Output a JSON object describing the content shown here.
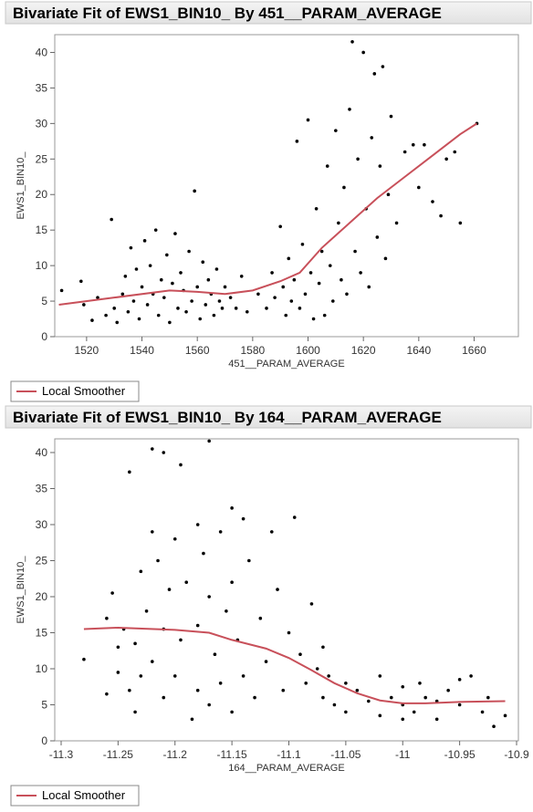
{
  "chart_data": [
    {
      "type": "scatter",
      "title": "Bivariate Fit of EWS1_BIN10_  By 451__PARAM_AVERAGE",
      "x_label": "451__PARAM_AVERAGE",
      "y_label": "EWS1_BIN10_",
      "xlim": [
        1508.5,
        1676
      ],
      "ylim": [
        0,
        42.5
      ],
      "xticks": [
        1520,
        1540,
        1560,
        1580,
        1600,
        1620,
        1640,
        1660
      ],
      "yticks": [
        0,
        5,
        10,
        15,
        20,
        25,
        30,
        35,
        40
      ],
      "series": [
        {
          "color": "#000000",
          "x": [
            1511,
            1518,
            1519,
            1522,
            1524,
            1527,
            1529,
            1530,
            1531,
            1533,
            1534,
            1535,
            1536,
            1537,
            1538,
            1539,
            1540,
            1541,
            1542,
            1543,
            1544,
            1545,
            1546,
            1547,
            1548,
            1549,
            1550,
            1551,
            1552,
            1553,
            1554,
            1555,
            1556,
            1557,
            1558,
            1559,
            1560,
            1561,
            1562,
            1563,
            1564,
            1565,
            1566,
            1567,
            1568,
            1569,
            1570,
            1572,
            1574,
            1576,
            1578,
            1582,
            1585,
            1587,
            1588,
            1590,
            1591,
            1592,
            1593,
            1594,
            1595,
            1596,
            1597,
            1598,
            1599,
            1600,
            1601,
            1602,
            1603,
            1604,
            1605,
            1606,
            1607,
            1608,
            1609,
            1610,
            1611,
            1612,
            1613,
            1614,
            1615,
            1616,
            1617,
            1618,
            1619,
            1620,
            1621,
            1622,
            1623,
            1624,
            1625,
            1626,
            1627,
            1628,
            1629,
            1630,
            1632,
            1635,
            1638,
            1640,
            1642,
            1645,
            1648,
            1650,
            1653,
            1655,
            1661
          ],
          "y": [
            6.5,
            7.8,
            4.5,
            2.3,
            5.5,
            3,
            16.5,
            4,
            2,
            6,
            8.5,
            3.5,
            12.5,
            5,
            9.5,
            2.5,
            7,
            13.5,
            4.5,
            10,
            6,
            15,
            3,
            8,
            5.5,
            11.5,
            2,
            7.5,
            14.5,
            4,
            9,
            6.5,
            3.5,
            12,
            5,
            20.5,
            7,
            2.5,
            10.5,
            4.5,
            8,
            6,
            3,
            9.5,
            5,
            4,
            7,
            5.5,
            4,
            8.5,
            3.5,
            6,
            4,
            9,
            5.5,
            15.5,
            7,
            3,
            11,
            5,
            8,
            27.5,
            4,
            13,
            6,
            30.5,
            9,
            2.5,
            18,
            7.5,
            12,
            3,
            24,
            10,
            5,
            29,
            16,
            8,
            21,
            6,
            32,
            41.5,
            12,
            25,
            9,
            40,
            18,
            7,
            28,
            37,
            14,
            24,
            38,
            11,
            20,
            31,
            16,
            26,
            27,
            21,
            27,
            19,
            17,
            25,
            26,
            16,
            30
          ]
        },
        {
          "name": "Local Smoother",
          "color": "#c8505a",
          "mode": "line",
          "x": [
            1510,
            1530,
            1550,
            1560,
            1570,
            1580,
            1590,
            1597,
            1605,
            1615,
            1625,
            1635,
            1645,
            1655,
            1661
          ],
          "y": [
            4.5,
            5.5,
            6.5,
            6.3,
            6,
            6.5,
            7.8,
            9,
            12.5,
            16,
            19.5,
            22.5,
            25.5,
            28.5,
            30
          ]
        }
      ]
    },
    {
      "type": "scatter",
      "title": "Bivariate Fit of EWS1_BIN10_  By 164__PARAM_AVERAGE",
      "x_label": "164__PARAM_AVERAGE",
      "y_label": "EWS1_BIN10_",
      "xlim": [
        -11.3056,
        -10.8984
      ],
      "ylim": [
        0,
        41.9
      ],
      "xticks": [
        -11.3,
        -11.25,
        -11.2,
        -11.15,
        -11.1,
        -11.05,
        -11,
        -10.95,
        -10.9
      ],
      "yticks": [
        0,
        5,
        10,
        15,
        20,
        25,
        30,
        35,
        40
      ],
      "series": [
        {
          "color": "#000000",
          "x": [
            -11.28,
            -11.26,
            -11.26,
            -11.255,
            -11.25,
            -11.25,
            -11.245,
            -11.24,
            -11.24,
            -11.235,
            -11.235,
            -11.23,
            -11.23,
            -11.225,
            -11.22,
            -11.22,
            -11.22,
            -11.215,
            -11.21,
            -11.21,
            -11.21,
            -11.205,
            -11.2,
            -11.2,
            -11.195,
            -11.195,
            -11.19,
            -11.185,
            -11.18,
            -11.18,
            -11.18,
            -11.175,
            -11.17,
            -11.17,
            -11.17,
            -11.165,
            -11.16,
            -11.16,
            -11.155,
            -11.15,
            -11.15,
            -11.15,
            -11.145,
            -11.14,
            -11.14,
            -11.135,
            -11.13,
            -11.125,
            -11.12,
            -11.115,
            -11.11,
            -11.105,
            -11.1,
            -11.095,
            -11.09,
            -11.085,
            -11.08,
            -11.075,
            -11.07,
            -11.07,
            -11.065,
            -11.06,
            -11.05,
            -11.05,
            -11.04,
            -11.03,
            -11.02,
            -11.02,
            -11.01,
            -11,
            -11,
            -11,
            -10.99,
            -10.985,
            -10.98,
            -10.97,
            -10.96,
            -10.95,
            -10.94,
            -10.93,
            -10.925,
            -10.92,
            -10.91,
            -10.95,
            -10.97
          ],
          "y": [
            11.3,
            17,
            6.5,
            20.5,
            13,
            9.5,
            15.5,
            37.3,
            7,
            13.5,
            4,
            23.5,
            9,
            18,
            40.5,
            29,
            11,
            25,
            40,
            15.5,
            6,
            21,
            28,
            9,
            38.3,
            14,
            22,
            3,
            30,
            16,
            7,
            26,
            41.6,
            20,
            5,
            12,
            29,
            8,
            18,
            32.3,
            22,
            4,
            14,
            30.8,
            9,
            25,
            6,
            17,
            11,
            29,
            21,
            7,
            15,
            31,
            12,
            8,
            19,
            10,
            13,
            6,
            9,
            5,
            8,
            4,
            7,
            5.5,
            9,
            3.5,
            6,
            7.5,
            3,
            5,
            4,
            8,
            6,
            3,
            7,
            5,
            9,
            4,
            6,
            2,
            3.5,
            8.5,
            5.5
          ]
        },
        {
          "name": "Local Smoother",
          "color": "#c8505a",
          "mode": "line",
          "x": [
            -11.28,
            -11.25,
            -11.2,
            -11.17,
            -11.15,
            -11.12,
            -11.1,
            -11.08,
            -11.06,
            -11.04,
            -11.02,
            -11,
            -10.98,
            -10.95,
            -10.91
          ],
          "y": [
            15.5,
            15.7,
            15.4,
            15,
            14,
            12.8,
            11.5,
            9.8,
            8,
            6.6,
            5.6,
            5.2,
            5.2,
            5.4,
            5.5
          ]
        }
      ]
    }
  ]
}
